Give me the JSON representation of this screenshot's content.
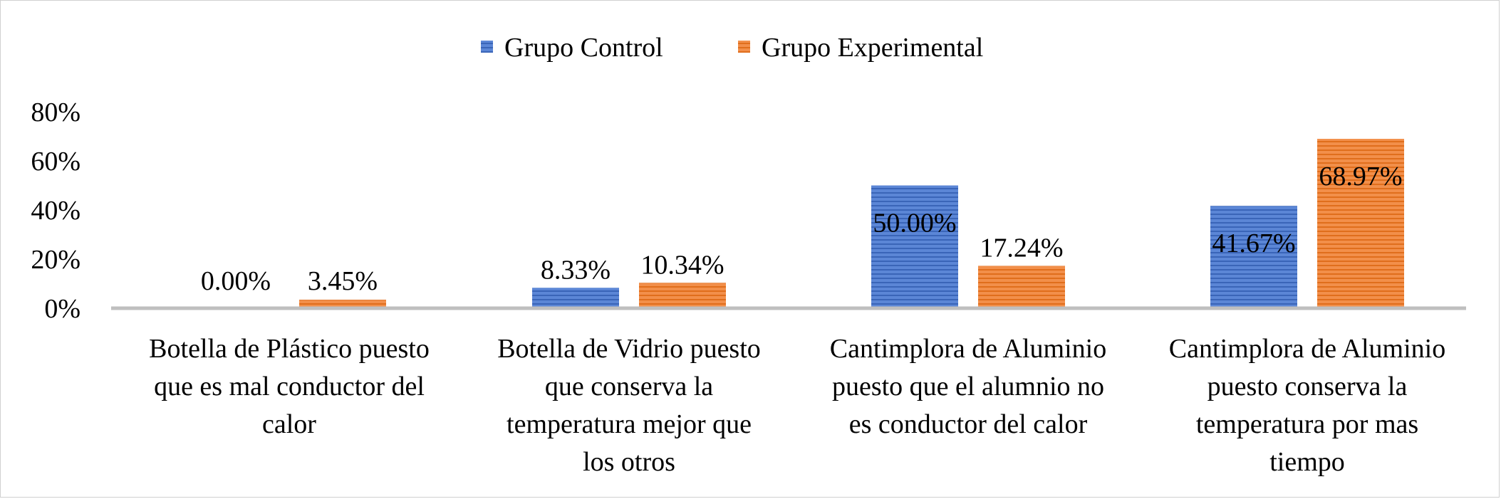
{
  "chart_data": {
    "type": "bar",
    "title": "",
    "xlabel": "",
    "ylabel": "",
    "ylim": [
      0,
      80
    ],
    "y_ticks": [
      "0%",
      "20%",
      "40%",
      "60%",
      "80%"
    ],
    "grid": false,
    "legend_position": "top-center",
    "categories": [
      [
        "Botella de Plástico puesto",
        "que es mal conductor del",
        "calor"
      ],
      [
        "Botella de Vidrio puesto",
        "que conserva la",
        "temperatura mejor que",
        "los otros"
      ],
      [
        "Cantimplora de Aluminio",
        "puesto que el alumnio no",
        "es conductor del calor"
      ],
      [
        "Cantimplora de Aluminio",
        "puesto conserva la",
        "temperatura por mas",
        "tiempo"
      ]
    ],
    "series": [
      {
        "name": "Grupo Control",
        "color": "#4472C4",
        "values": [
          0.0,
          8.33,
          50.0,
          41.67
        ],
        "labels": [
          "0.00%",
          "8.33%",
          "50.00%",
          "41.67%"
        ]
      },
      {
        "name": "Grupo Experimental",
        "color": "#ED7D31",
        "values": [
          3.45,
          10.34,
          17.24,
          68.97
        ],
        "labels": [
          "3.45%",
          "10.34%",
          "17.24%",
          "68.97%"
        ]
      }
    ]
  }
}
